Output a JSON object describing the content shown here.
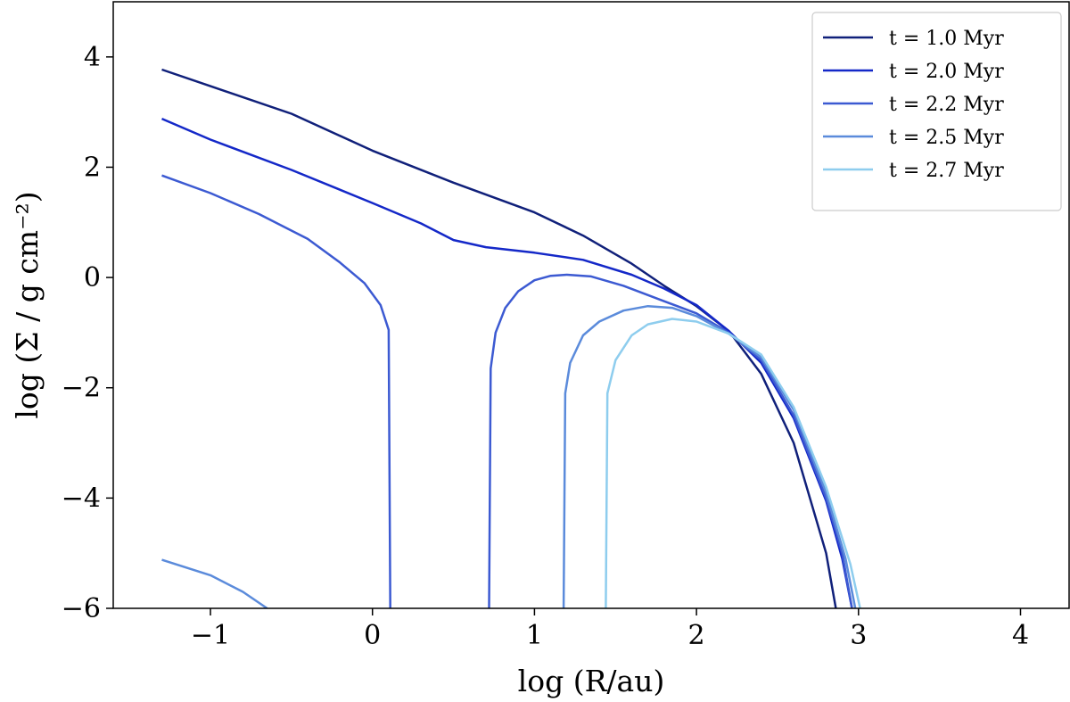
{
  "chart_data": {
    "type": "line",
    "title": "",
    "xlabel": "log (R/au)",
    "ylabel": "log (Σ / g cm⁻²)",
    "xlim": [
      -1.6,
      4.3
    ],
    "ylim": [
      -6,
      5
    ],
    "xticks": [
      -1,
      0,
      1,
      2,
      3,
      4
    ],
    "yticks": [
      -6,
      -4,
      -2,
      0,
      2,
      4
    ],
    "xtick_labels": [
      "−1",
      "0",
      "1",
      "2",
      "3",
      "4"
    ],
    "ytick_labels": [
      "−6",
      "−4",
      "−2",
      "0",
      "2",
      "4"
    ],
    "grid": false,
    "legend_position": "top-right",
    "series": [
      {
        "name": "t = 1.0 Myr",
        "color": "#10207a",
        "points": [
          [
            -1.3,
            3.77
          ],
          [
            -1.0,
            3.47
          ],
          [
            -0.5,
            2.97
          ],
          [
            0.0,
            2.3
          ],
          [
            0.5,
            1.72
          ],
          [
            1.0,
            1.18
          ],
          [
            1.3,
            0.76
          ],
          [
            1.6,
            0.25
          ],
          [
            1.8,
            -0.15
          ],
          [
            2.0,
            -0.52
          ],
          [
            2.2,
            -0.97
          ],
          [
            2.4,
            -1.75
          ],
          [
            2.6,
            -3.0
          ],
          [
            2.8,
            -5.0
          ],
          [
            2.86,
            -6.0
          ]
        ]
      },
      {
        "name": "t = 2.0 Myr",
        "color": "#1428c8",
        "points": [
          [
            -1.3,
            2.88
          ],
          [
            -1.0,
            2.5
          ],
          [
            -0.5,
            1.95
          ],
          [
            0.0,
            1.35
          ],
          [
            0.3,
            0.98
          ],
          [
            0.5,
            0.68
          ],
          [
            0.7,
            0.55
          ],
          [
            1.0,
            0.45
          ],
          [
            1.3,
            0.32
          ],
          [
            1.6,
            0.05
          ],
          [
            1.8,
            -0.2
          ],
          [
            2.0,
            -0.5
          ],
          [
            2.2,
            -0.97
          ],
          [
            2.4,
            -1.55
          ],
          [
            2.6,
            -2.55
          ],
          [
            2.8,
            -4.05
          ],
          [
            2.9,
            -5.1
          ],
          [
            2.96,
            -6.0
          ]
        ]
      },
      {
        "name": "t = 2.2 Myr",
        "color": "#3c5ad2",
        "segments": [
          [
            [
              -1.3,
              1.85
            ],
            [
              -1.0,
              1.53
            ],
            [
              -0.7,
              1.15
            ],
            [
              -0.4,
              0.7
            ],
            [
              -0.2,
              0.27
            ],
            [
              -0.05,
              -0.1
            ],
            [
              0.05,
              -0.5
            ],
            [
              0.1,
              -0.95
            ],
            [
              0.11,
              -6.0
            ]
          ],
          [
            [
              0.72,
              -6.0
            ],
            [
              0.73,
              -1.65
            ],
            [
              0.76,
              -1.0
            ],
            [
              0.82,
              -0.55
            ],
            [
              0.9,
              -0.25
            ],
            [
              1.0,
              -0.05
            ],
            [
              1.1,
              0.03
            ],
            [
              1.2,
              0.05
            ],
            [
              1.35,
              0.02
            ],
            [
              1.55,
              -0.15
            ],
            [
              1.8,
              -0.43
            ],
            [
              2.0,
              -0.65
            ],
            [
              2.2,
              -1.0
            ],
            [
              2.4,
              -1.5
            ],
            [
              2.6,
              -2.5
            ],
            [
              2.8,
              -4.0
            ],
            [
              2.9,
              -5.0
            ],
            [
              2.96,
              -6.0
            ]
          ]
        ]
      },
      {
        "name": "t = 2.5 Myr",
        "color": "#5b8bdb",
        "segments": [
          [
            [
              -1.3,
              -5.12
            ],
            [
              -1.0,
              -5.4
            ],
            [
              -0.8,
              -5.7
            ],
            [
              -0.65,
              -6.0
            ]
          ],
          [
            [
              1.18,
              -6.0
            ],
            [
              1.19,
              -2.1
            ],
            [
              1.22,
              -1.55
            ],
            [
              1.3,
              -1.05
            ],
            [
              1.4,
              -0.8
            ],
            [
              1.55,
              -0.6
            ],
            [
              1.7,
              -0.52
            ],
            [
              1.85,
              -0.55
            ],
            [
              2.0,
              -0.7
            ],
            [
              2.2,
              -1.02
            ],
            [
              2.4,
              -1.45
            ],
            [
              2.6,
              -2.4
            ],
            [
              2.8,
              -3.9
            ],
            [
              2.92,
              -5.1
            ],
            [
              2.98,
              -6.0
            ]
          ]
        ]
      },
      {
        "name": "t = 2.7 Myr",
        "color": "#8ecdee",
        "points": [
          [
            1.44,
            -6.0
          ],
          [
            1.45,
            -2.1
          ],
          [
            1.5,
            -1.5
          ],
          [
            1.6,
            -1.05
          ],
          [
            1.7,
            -0.85
          ],
          [
            1.85,
            -0.75
          ],
          [
            2.0,
            -0.8
          ],
          [
            2.2,
            -1.02
          ],
          [
            2.4,
            -1.4
          ],
          [
            2.6,
            -2.35
          ],
          [
            2.8,
            -3.8
          ],
          [
            2.95,
            -5.2
          ],
          [
            3.01,
            -6.0
          ]
        ]
      }
    ]
  }
}
